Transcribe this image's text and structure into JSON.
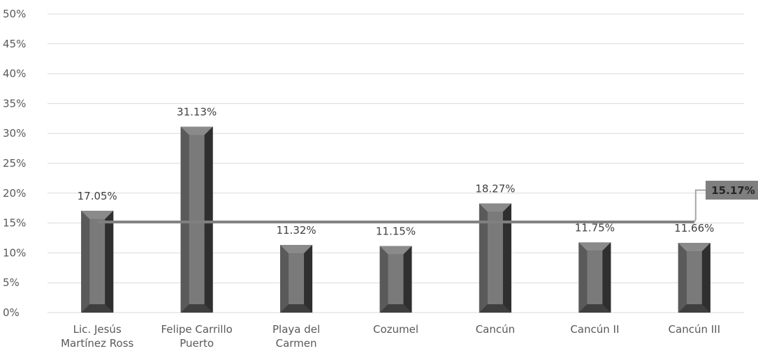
{
  "chart_data": {
    "type": "bar",
    "categories": [
      [
        "Lic. Jesús",
        "Martínez Ross"
      ],
      [
        "Felipe Carrillo",
        "Puerto"
      ],
      [
        "Playa del",
        "Carmen"
      ],
      [
        "Cozumel"
      ],
      [
        "Cancún"
      ],
      [
        "Cancún II"
      ],
      [
        "Cancún III"
      ]
    ],
    "values": [
      17.05,
      31.13,
      11.32,
      11.15,
      18.27,
      11.75,
      11.66
    ],
    "data_labels": [
      "17.05%",
      "31.13%",
      "11.32%",
      "11.15%",
      "18.27%",
      "11.75%",
      "11.66%"
    ],
    "reference_line": {
      "value": 15.17,
      "label": "15.17%"
    },
    "ylim": [
      0,
      50
    ],
    "yticks": [
      0,
      5,
      10,
      15,
      20,
      25,
      30,
      35,
      40,
      45,
      50
    ],
    "ytick_labels": [
      "0%",
      "5%",
      "10%",
      "15%",
      "20%",
      "25%",
      "30%",
      "35%",
      "40%",
      "45%",
      "50%"
    ],
    "grid": true,
    "title": "",
    "xlabel": "",
    "ylabel": "",
    "colors": {
      "bar_dark": "#3f3f3f",
      "bar_mid": "#5a5a5a",
      "bar_light": "#7a7a7a",
      "bar_top": "#8a8a8a",
      "line": "#808080",
      "callout_fill": "#7f7f7f",
      "callout_leader": "#a6a6a6"
    }
  }
}
